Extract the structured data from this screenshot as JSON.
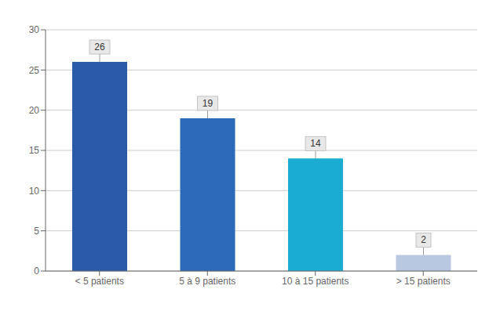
{
  "chart_data": {
    "type": "bar",
    "categories": [
      "< 5 patients",
      "5 à 9 patients",
      "10 à 15 patients",
      "> 15 patients"
    ],
    "values": [
      26,
      19,
      14,
      2
    ],
    "colors": [
      "#2B5AA8",
      "#2B6AB8",
      "#1BACD4",
      "#B8C8E0"
    ],
    "ylim": [
      0,
      30
    ],
    "yticks": [
      0,
      5,
      10,
      15,
      20,
      25,
      30
    ],
    "grid": true,
    "data_labels": true
  }
}
